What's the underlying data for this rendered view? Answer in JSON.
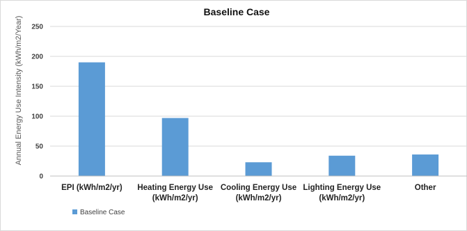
{
  "chart_data": {
    "type": "bar",
    "title": "Baseline Case",
    "ylabel": "Annual Energy Use Intensity (kWh/m2/Year)",
    "xlabel": "",
    "ylim": [
      0,
      250
    ],
    "yticks": [
      0,
      50,
      100,
      150,
      200,
      250
    ],
    "grid": true,
    "legend_position": "bottom-left",
    "categories": [
      [
        "EPI (kWh/m2/yr)"
      ],
      [
        "Heating Energy Use",
        "(kWh/m2/yr)"
      ],
      [
        "Cooling Energy Use",
        "(kWh/m2/yr)"
      ],
      [
        "Lighting Energy Use",
        "(kWh/m2/yr)"
      ],
      [
        "Other"
      ]
    ],
    "series": [
      {
        "name": "Baseline Case",
        "color": "#5b9bd5",
        "values": [
          190,
          97,
          23,
          34,
          36
        ]
      }
    ]
  }
}
